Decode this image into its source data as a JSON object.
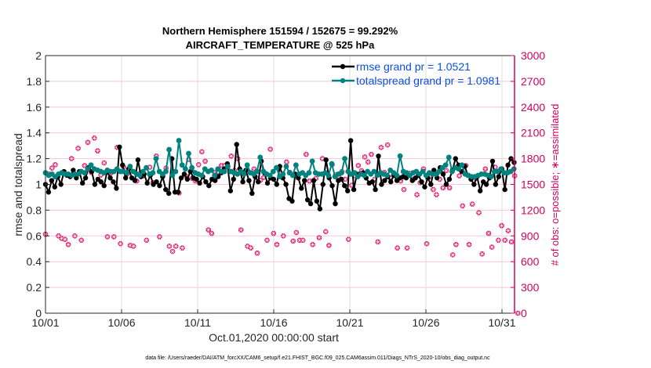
{
  "chart_data": {
    "type": "line",
    "title": [
      "Northern Hemisphere 151594 / 152675 = 99.292%",
      "AIRCRAFT_TEMPERATURE @ 525 hPa"
    ],
    "xlabel": "Oct.01,2020 00:00:00 start",
    "ylabel": "rmse and totalspread",
    "y2label": "# of obs: o=possible; ∗=assimilated",
    "footer": "data file: /Users/raeder/DAI/ATM_forcXX/CAM6_setup/f.e21.FHIST_BGC.f09_025.CAM6assim.011/Diags_NTrS_2020-10/obs_diag_output.nc",
    "x_ticks": [
      "10/01",
      "10/06",
      "10/11",
      "10/16",
      "10/21",
      "10/26",
      "10/31"
    ],
    "x_tick_days": [
      0,
      5,
      10,
      15,
      20,
      25,
      30
    ],
    "xlim_days": [
      0,
      31.05
    ],
    "ylim": [
      0,
      2
    ],
    "y_ticks": [
      "0",
      "0.2",
      "0.4",
      "0.6",
      "0.8",
      "1",
      "1.2",
      "1.4",
      "1.6",
      "1.8",
      "2"
    ],
    "y2lim": [
      0,
      3000
    ],
    "y2_ticks": [
      "0",
      "300",
      "600",
      "900",
      "1200",
      "1500",
      "1800",
      "2100",
      "2400",
      "2700",
      "3000"
    ],
    "grid": true,
    "legend_position": "top-right",
    "time_step_days": 0.25,
    "series": [
      {
        "name": "rmse grand pr = 1.0521",
        "color": "#000000",
        "values": [
          1.0,
          0.94,
          1.03,
          0.98,
          1.06,
          1.0,
          1.1,
          1.07,
          1.06,
          1.11,
          1.05,
          1.1,
          1.01,
          1.05,
          1.13,
          1.1,
          1.0,
          1.04,
          1.02,
          0.99,
          1.1,
          1.05,
          1.02,
          0.97,
          1.29,
          1.15,
          1.05,
          1.12,
          1.05,
          1.03,
          1.19,
          1.06,
          1.08,
          1.01,
          1.07,
          1.0,
          1.02,
          0.99,
          1.06,
          0.96,
          0.93,
          1.2,
          0.94,
          0.94,
          1.05,
          1.08,
          1.04,
          1.1,
          1.05,
          1.04,
          1.01,
          1.06,
          1.02,
          0.99,
          1.04,
          1.03,
          1.06,
          1.09,
          1.12,
          1.16,
          0.95,
          1.04,
          1.31,
          1.12,
          1.02,
          1.11,
          1.03,
          0.93,
          1.06,
          1.02,
          1.18,
          1.09,
          1.01,
          1.05,
          1.04,
          1.0,
          1.14,
          1.05,
          1.0,
          0.89,
          0.87,
          1.08,
          1.05,
          0.97,
          1.03,
          0.88,
          0.85,
          1.03,
          0.87,
          0.81,
          1.0,
          1.19,
          1.05,
          0.99,
          0.85,
          1.03,
          1.04,
          0.99,
          0.95,
          1.34,
          0.96,
          1.08,
          1.08,
          1.09,
          1.05,
          1.01,
          1.02,
          0.96,
          1.22,
          1.0,
          1.03,
          1.06,
          1.02,
          1.07,
          1.03,
          1.05,
          1.06,
          1.05,
          1.07,
          1.03,
          1.05,
          1.07,
          1.02,
          0.98,
          1.05,
          1.0,
          1.11,
          1.05,
          1.13,
          1.08,
          1.0,
          1.04,
          1.11,
          1.2,
          1.15,
          1.1,
          1.14,
          1.07,
          1.04,
          1.0,
          1.06,
          0.95,
          1.02,
          1.0,
          1.05,
          1.18,
          1.0,
          1.06,
          1.12,
          0.96,
          1.15,
          1.2,
          1.17
        ]
      },
      {
        "name": "totalspread grand pr = 1.0981",
        "color": "#00827f",
        "values": [
          1.09,
          1.07,
          1.08,
          1.06,
          1.08,
          1.09,
          1.08,
          1.08,
          1.07,
          1.08,
          1.08,
          1.1,
          1.09,
          1.12,
          1.15,
          1.12,
          1.11,
          1.1,
          1.09,
          1.11,
          1.1,
          1.1,
          1.12,
          1.1,
          1.1,
          1.09,
          1.14,
          1.1,
          1.08,
          1.07,
          1.1,
          1.13,
          1.08,
          1.09,
          1.2,
          1.1,
          1.08,
          1.1,
          1.27,
          1.07,
          1.1,
          1.34,
          1.15,
          1.12,
          1.24,
          1.13,
          1.09,
          1.08,
          1.07,
          1.12,
          1.1,
          1.11,
          1.07,
          1.12,
          1.1,
          1.1,
          1.14,
          1.1,
          1.09,
          1.08,
          1.1,
          1.08,
          1.15,
          1.09,
          1.08,
          1.1,
          1.21,
          1.1,
          1.08,
          1.07,
          1.1,
          1.13,
          1.06,
          1.08,
          1.14,
          1.09,
          1.07,
          1.15,
          1.08,
          1.09,
          1.07,
          1.09,
          1.18,
          1.09,
          1.08,
          1.08,
          1.09,
          1.07,
          1.16,
          1.06,
          1.08,
          1.09,
          1.2,
          1.1,
          1.08,
          1.09,
          1.06,
          1.08,
          1.07,
          1.1,
          1.08,
          1.1,
          1.07,
          1.09,
          1.08,
          1.07,
          1.11,
          1.09,
          1.07,
          1.22,
          1.1,
          1.09,
          1.07,
          1.09,
          1.1,
          1.08,
          1.1,
          1.07,
          1.09,
          1.08,
          1.08,
          1.1,
          1.13,
          1.15,
          1.21,
          1.1,
          1.13,
          1.12,
          1.15,
          1.08,
          1.07,
          1.06,
          1.06,
          1.07,
          1.08,
          1.08,
          1.07,
          1.06,
          1.1,
          1.1,
          1.12,
          1.09,
          1.09,
          1.1,
          1.12
        ]
      }
    ],
    "obs_series": [
      {
        "name": "obs possible / assimilated",
        "color": "#d6005e",
        "values": [
          920,
          1620,
          1690,
          1730,
          900,
          870,
          860,
          800,
          1800,
          900,
          1920,
          850,
          1720,
          1990,
          1640,
          2040,
          1890,
          1610,
          1750,
          890,
          1630,
          890,
          1930,
          810,
          1700,
          1620,
          790,
          780,
          1540,
          1630,
          1600,
          850,
          1700,
          1520,
          1830,
          890,
          1600,
          1690,
          780,
          720,
          780,
          1400,
          760,
          1600,
          1790,
          1570,
          1540,
          1730,
          1880,
          1770,
          970,
          930,
          1640,
          1600,
          1720,
          1720,
          1710,
          1830,
          1660,
          1800,
          970,
          1640,
          780,
          760,
          1680,
          700,
          1550,
          1580,
          850,
          1910,
          930,
          800,
          1640,
          900,
          1760,
          1640,
          840,
          940,
          850,
          850,
          1850,
          1540,
          800,
          1570,
          880,
          1800,
          950,
          790,
          1730,
          1610,
          1590,
          1650,
          1560,
          860,
          1490,
          1600,
          1720,
          1660,
          1820,
          1760,
          1850,
          1560,
          830,
          1930,
          1640,
          1960,
          1580,
          1620,
          760,
          1540,
          1440,
          760,
          1630,
          1560,
          1380,
          1520,
          1680,
          810,
          1590,
          1440,
          1380,
          1560,
          1460,
          1660,
          1460,
          680,
          800,
          1600,
          1250,
          1720,
          800,
          1270,
          1570,
          1170,
          690,
          1680,
          930,
          770,
          1700,
          850,
          1020,
          850,
          960,
          830,
          1600,
          0
        ]
      }
    ],
    "legend": [
      {
        "label": "rmse grand pr = 1.0521",
        "color": "#000000"
      },
      {
        "label": "totalspread grand pr = 1.0981",
        "color": "#00827f"
      }
    ]
  }
}
